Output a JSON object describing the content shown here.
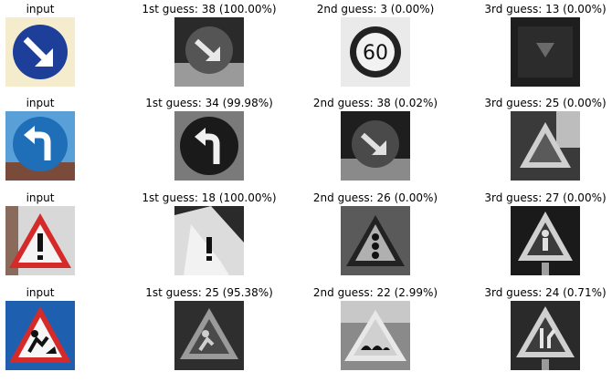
{
  "rows": [
    {
      "input_label": "input",
      "guesses": [
        "1st guess: 38 (100.00%)",
        "2nd guess: 3 (0.00%)",
        "3rd guess: 13 (0.00%)"
      ]
    },
    {
      "input_label": "input",
      "guesses": [
        "1st guess: 34 (99.98%)",
        "2nd guess: 38 (0.02%)",
        "3rd guess: 25 (0.00%)"
      ]
    },
    {
      "input_label": "input",
      "guesses": [
        "1st guess: 18 (100.00%)",
        "2nd guess: 26 (0.00%)",
        "3rd guess: 27 (0.00%)"
      ]
    },
    {
      "input_label": "input",
      "guesses": [
        "1st guess: 25 (95.38%)",
        "2nd guess: 22 (2.99%)",
        "3rd guess: 24 (0.71%)"
      ]
    }
  ],
  "sign_text": {
    "speed_limit": "60"
  },
  "colors": {
    "sign_blue": "#1d3f9a",
    "sign_red": "#d42a2a",
    "sky_blue": "#5aa0d8"
  }
}
